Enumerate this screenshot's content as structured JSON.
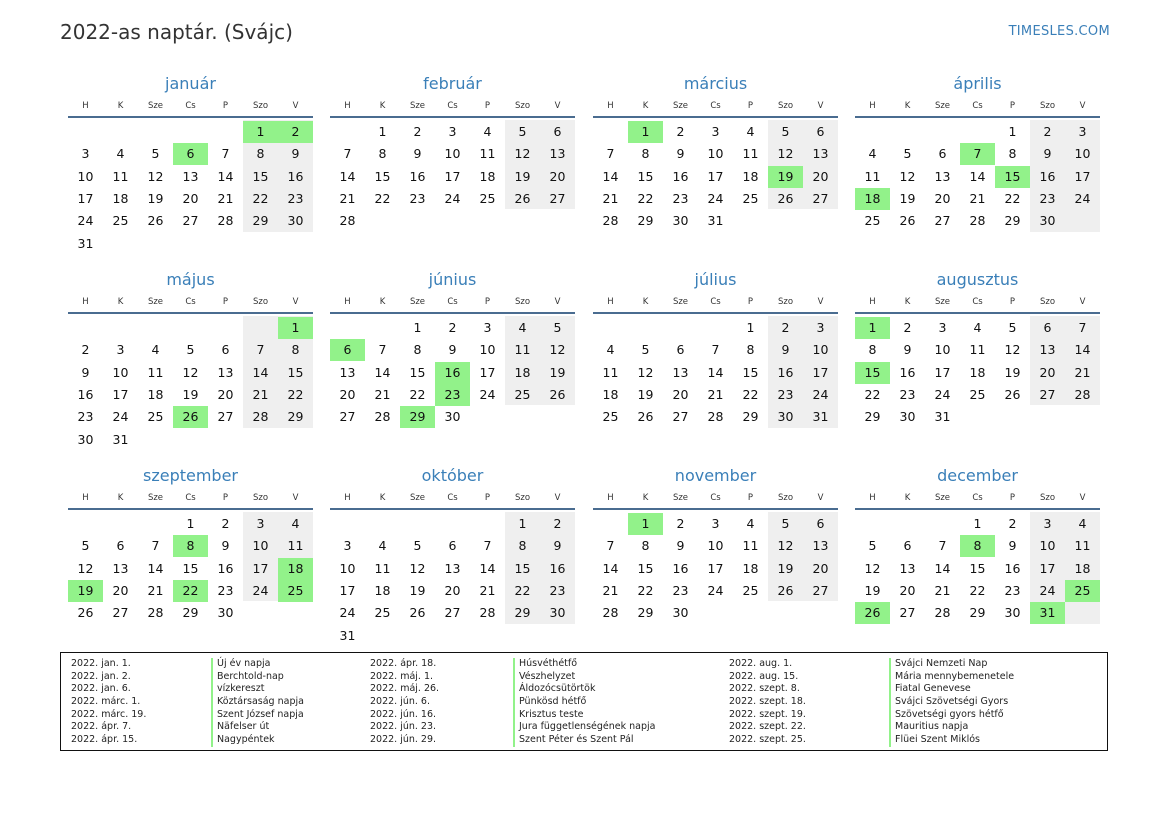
{
  "header": {
    "title": "2022-as naptár. (Svájc)",
    "site": "TIMESLES.COM"
  },
  "weekdays": [
    "H",
    "K",
    "Sze",
    "Cs",
    "P",
    "Szo",
    "V"
  ],
  "accent_color": "#3a7fb8",
  "holiday_color": "#92f28a",
  "weekend_color": "#efefef",
  "months": [
    {
      "name": "január",
      "offset": 5,
      "days": 31,
      "holidays": [
        1,
        2,
        6
      ]
    },
    {
      "name": "február",
      "offset": 1,
      "days": 28,
      "holidays": []
    },
    {
      "name": "március",
      "offset": 1,
      "days": 31,
      "holidays": [
        1,
        19
      ]
    },
    {
      "name": "április",
      "offset": 4,
      "days": 30,
      "holidays": [
        7,
        15,
        18
      ]
    },
    {
      "name": "május",
      "offset": 6,
      "days": 31,
      "holidays": [
        1,
        26
      ]
    },
    {
      "name": "június",
      "offset": 2,
      "days": 30,
      "holidays": [
        6,
        16,
        23,
        29
      ]
    },
    {
      "name": "július",
      "offset": 4,
      "days": 31,
      "holidays": []
    },
    {
      "name": "augusztus",
      "offset": 0,
      "days": 31,
      "holidays": [
        1,
        15
      ]
    },
    {
      "name": "szeptember",
      "offset": 3,
      "days": 30,
      "holidays": [
        8,
        18,
        19,
        22,
        25
      ]
    },
    {
      "name": "október",
      "offset": 5,
      "days": 31,
      "holidays": []
    },
    {
      "name": "november",
      "offset": 1,
      "days": 30,
      "holidays": [
        1
      ]
    },
    {
      "name": "december",
      "offset": 3,
      "days": 31,
      "holidays": [
        8,
        25,
        26,
        31
      ]
    }
  ],
  "legend": [
    [
      {
        "date": "2022. jan. 1.",
        "name": "Új év napja"
      },
      {
        "date": "2022. jan. 2.",
        "name": "Berchtold-nap"
      },
      {
        "date": "2022. jan. 6.",
        "name": "vízkereszt"
      },
      {
        "date": "2022. márc. 1.",
        "name": "Köztársaság napja"
      },
      {
        "date": "2022. márc. 19.",
        "name": "Szent József napja"
      },
      {
        "date": "2022. ápr. 7.",
        "name": "Näfelser út"
      },
      {
        "date": "2022. ápr. 15.",
        "name": "Nagypéntek"
      }
    ],
    [
      {
        "date": "2022. ápr. 18.",
        "name": "Húsvéthétfő"
      },
      {
        "date": "2022. máj. 1.",
        "name": "Vészhelyzet"
      },
      {
        "date": "2022. máj. 26.",
        "name": "Áldozócsütörtök"
      },
      {
        "date": "2022. jún. 6.",
        "name": "Pünkösd hétfő"
      },
      {
        "date": "2022. jún. 16.",
        "name": "Krisztus teste"
      },
      {
        "date": "2022. jún. 23.",
        "name": "Jura függetlenségének napja"
      },
      {
        "date": "2022. jún. 29.",
        "name": "Szent Péter és Szent Pál"
      }
    ],
    [
      {
        "date": "2022. aug. 1.",
        "name": "Svájci Nemzeti Nap"
      },
      {
        "date": "2022. aug. 15.",
        "name": "Mária mennybemenetele"
      },
      {
        "date": "2022. szept. 8.",
        "name": "Fiatal Genevese"
      },
      {
        "date": "2022. szept. 18.",
        "name": "Svájci Szövetségi Gyors"
      },
      {
        "date": "2022. szept. 19.",
        "name": "Szövetségi gyors hétfő"
      },
      {
        "date": "2022. szept. 22.",
        "name": "Mauritius napja"
      },
      {
        "date": "2022. szept. 25.",
        "name": "Flüei Szent Miklós"
      }
    ]
  ]
}
